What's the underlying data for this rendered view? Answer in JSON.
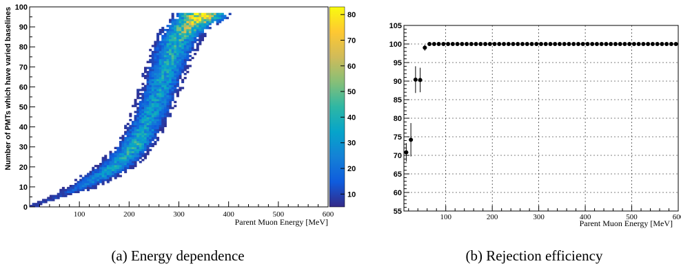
{
  "captions": {
    "left": "(a) Energy dependence",
    "right": "(b) Rejection efficiency"
  },
  "chart_data": [
    {
      "type": "heatmap",
      "xlabel": "Parent Muon Energy [MeV]",
      "ylabel": "Number of PMTs which have varied baselines",
      "xlim": [
        0,
        600
      ],
      "ylim": [
        0,
        100
      ],
      "xticks": [
        100,
        200,
        300,
        400,
        500,
        600
      ],
      "yticks": [
        0,
        10,
        20,
        30,
        40,
        50,
        60,
        70,
        80,
        90,
        100
      ],
      "colorbar": {
        "range": [
          5,
          83
        ],
        "ticks": [
          10,
          20,
          30,
          40,
          50,
          60,
          70,
          80
        ]
      },
      "colorscale": [
        "#352a87",
        "#0f5cdd",
        "#1481d6",
        "#06a4ca",
        "#2eb7a4",
        "#87bf77",
        "#d1bb59",
        "#fec832",
        "#f9fb0e"
      ],
      "ridge": [
        {
          "pmts": 1,
          "energy_center": 10,
          "energy_width": 20,
          "intensity": 7
        },
        {
          "pmts": 5,
          "energy_center": 55,
          "energy_width": 30,
          "intensity": 10
        },
        {
          "pmts": 10,
          "energy_center": 105,
          "energy_width": 60,
          "intensity": 18
        },
        {
          "pmts": 15,
          "energy_center": 140,
          "energy_width": 70,
          "intensity": 28
        },
        {
          "pmts": 20,
          "energy_center": 170,
          "energy_width": 75,
          "intensity": 32
        },
        {
          "pmts": 25,
          "energy_center": 192,
          "energy_width": 75,
          "intensity": 35
        },
        {
          "pmts": 30,
          "energy_center": 210,
          "energy_width": 70,
          "intensity": 38
        },
        {
          "pmts": 35,
          "energy_center": 222,
          "energy_width": 70,
          "intensity": 36
        },
        {
          "pmts": 40,
          "energy_center": 232,
          "energy_width": 72,
          "intensity": 33
        },
        {
          "pmts": 45,
          "energy_center": 242,
          "energy_width": 74,
          "intensity": 32
        },
        {
          "pmts": 50,
          "energy_center": 250,
          "energy_width": 76,
          "intensity": 31
        },
        {
          "pmts": 55,
          "energy_center": 257,
          "energy_width": 76,
          "intensity": 31
        },
        {
          "pmts": 60,
          "energy_center": 264,
          "energy_width": 78,
          "intensity": 32
        },
        {
          "pmts": 65,
          "energy_center": 270,
          "energy_width": 78,
          "intensity": 33
        },
        {
          "pmts": 70,
          "energy_center": 277,
          "energy_width": 80,
          "intensity": 34
        },
        {
          "pmts": 75,
          "energy_center": 284,
          "energy_width": 82,
          "intensity": 36
        },
        {
          "pmts": 80,
          "energy_center": 292,
          "energy_width": 84,
          "intensity": 38
        },
        {
          "pmts": 85,
          "energy_center": 302,
          "energy_width": 86,
          "intensity": 42
        },
        {
          "pmts": 90,
          "energy_center": 318,
          "energy_width": 90,
          "intensity": 55
        },
        {
          "pmts": 95,
          "energy_center": 345,
          "energy_width": 100,
          "intensity": 78
        }
      ]
    },
    {
      "type": "scatter",
      "xlabel": "Parent Muon Energy [MeV]",
      "ylabel": "",
      "xlim": [
        10,
        600
      ],
      "ylim": [
        55,
        105
      ],
      "xticks": [
        100,
        200,
        300,
        400,
        500,
        600
      ],
      "yticks": [
        55,
        60,
        65,
        70,
        75,
        80,
        85,
        90,
        95,
        100,
        105
      ],
      "grid": true,
      "x": [
        15,
        25,
        35,
        45,
        55,
        65,
        75,
        85,
        95,
        105,
        115,
        125,
        135,
        145,
        155,
        165,
        175,
        185,
        195,
        205,
        215,
        225,
        235,
        245,
        255,
        265,
        275,
        285,
        295,
        305,
        315,
        325,
        335,
        345,
        355,
        365,
        375,
        385,
        395,
        405,
        415,
        425,
        435,
        445,
        455,
        465,
        475,
        485,
        495,
        505,
        515,
        525,
        535,
        545,
        555,
        565,
        575,
        585,
        595
      ],
      "y": [
        70.8,
        74.2,
        90.4,
        90.3,
        99.0,
        100,
        100,
        100,
        100,
        100,
        100,
        100,
        100,
        100,
        100,
        100,
        100,
        100,
        100,
        100,
        100,
        100,
        100,
        100,
        100,
        100,
        100,
        100,
        100,
        100,
        100,
        100,
        100,
        100,
        100,
        100,
        100,
        100,
        100,
        100,
        100,
        100,
        100,
        100,
        100,
        100,
        100,
        100,
        100,
        100,
        100,
        100,
        100,
        100,
        100,
        100,
        100,
        100,
        100
      ],
      "yerr": [
        2.5,
        4.5,
        3.6,
        3.3,
        0.8,
        0,
        0,
        0,
        0,
        0,
        0,
        0,
        0,
        0,
        0,
        0,
        0,
        0,
        0,
        0,
        0,
        0,
        0,
        0,
        0,
        0,
        0,
        0,
        0,
        0,
        0,
        0,
        0,
        0,
        0,
        0,
        0,
        0,
        0,
        0,
        0,
        0,
        0,
        0,
        0,
        0,
        0,
        0,
        0,
        0,
        0,
        0,
        0,
        0,
        0,
        0,
        0,
        0,
        0
      ]
    }
  ]
}
